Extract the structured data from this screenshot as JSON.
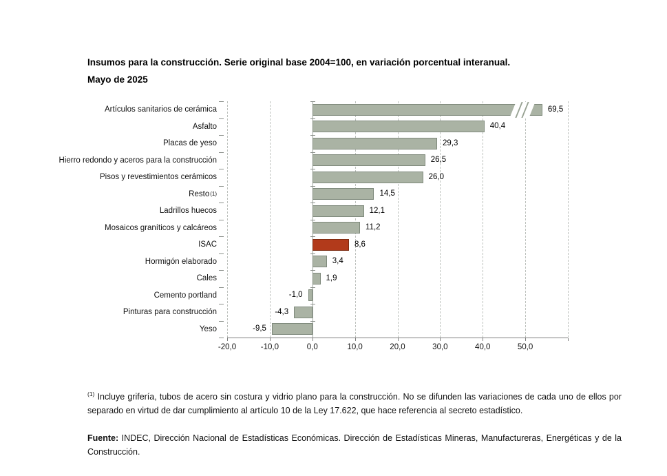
{
  "title": {
    "line1": "Insumos para la construcción. Serie original base 2004=100, en variación porcentual interanual.",
    "line2": "Mayo de 2025"
  },
  "chart_data": {
    "type": "bar",
    "orientation": "horizontal",
    "title": "Insumos para la construcción. Serie original base 2004=100, en variación porcentual interanual. Mayo de 2025",
    "categories": [
      {
        "label": "Artículos sanitarios de cerámica",
        "sup": ""
      },
      {
        "label": "Asfalto",
        "sup": ""
      },
      {
        "label": "Placas de yeso",
        "sup": ""
      },
      {
        "label": "Hierro redondo y aceros para la construcción",
        "sup": ""
      },
      {
        "label": "Pisos y revestimientos cerámicos",
        "sup": ""
      },
      {
        "label": "Resto",
        "sup": "(1)"
      },
      {
        "label": "Ladrillos huecos",
        "sup": ""
      },
      {
        "label": "Mosaicos graníticos y calcáreos",
        "sup": ""
      },
      {
        "label": "ISAC",
        "sup": ""
      },
      {
        "label": "Hormigón elaborado",
        "sup": ""
      },
      {
        "label": "Cales",
        "sup": ""
      },
      {
        "label": "Cemento portland",
        "sup": ""
      },
      {
        "label": "Pinturas para construcción",
        "sup": ""
      },
      {
        "label": "Yeso",
        "sup": ""
      }
    ],
    "values": [
      69.5,
      40.4,
      29.3,
      26.5,
      26.0,
      14.5,
      12.1,
      11.2,
      8.6,
      3.4,
      1.9,
      -1.0,
      -4.3,
      -9.5
    ],
    "value_labels": [
      "69,5",
      "40,4",
      "29,3",
      "26,5",
      "26,0",
      "14,5",
      "12,1",
      "11,2",
      "8,6",
      "3,4",
      "1,9",
      "-1,0",
      "-4,3",
      "-9,5"
    ],
    "highlight_index": 8,
    "bar_color": "#aab3a4",
    "highlight_color": "#b23a1b",
    "xlim": [
      -20,
      60
    ],
    "tick_step": 10,
    "x_tick_labels": [
      "-20,0",
      "-10,0",
      "0,0",
      "10,0",
      "20,0",
      "30,0",
      "40,0",
      "50,0"
    ],
    "x_tick_values": [
      -20,
      -10,
      0,
      10,
      20,
      30,
      40,
      50
    ],
    "gridline_values": [
      -20,
      -10,
      10,
      20,
      30,
      40,
      50,
      60
    ],
    "grid": true,
    "legend": "none",
    "axis_break": {
      "bar_index": 0,
      "display_value": 54,
      "break_start_units": 47,
      "break_width_units": 4.5
    }
  },
  "footnote": {
    "marker": "(1)",
    "text": "Incluye grifería, tubos de acero sin costura y vidrio plano para la construcción. No se difunden las variaciones de cada uno de ellos por separado en virtud de dar cumplimiento al artículo 10 de la Ley 17.622, que hace referencia al secreto estadístico."
  },
  "source": {
    "label": "Fuente:",
    "text": "INDEC, Dirección Nacional de Estadísticas Económicas. Dirección de Estadísticas Mineras, Manufactureras, Energéticas y de la Construcción."
  }
}
